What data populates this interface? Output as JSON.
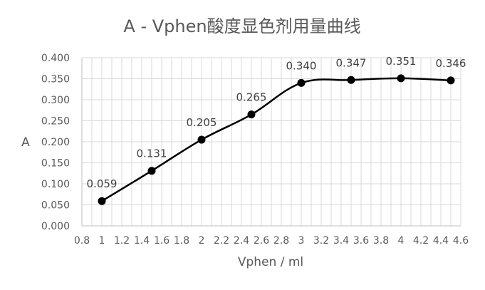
{
  "chart_data": {
    "type": "line",
    "title": "A - Vphen酸度显色剂用量曲线",
    "xlabel": "Vphen / ml",
    "ylabel": "A",
    "xlim": [
      0.8,
      4.6
    ],
    "ylim": [
      0,
      0.4
    ],
    "grid": true,
    "x_ticks": [
      "0.8",
      "1",
      "1.2",
      "1.4",
      "1.6",
      "1.8",
      "2",
      "2.2",
      "2.4",
      "2.6",
      "2.8",
      "3",
      "3.2",
      "3.4",
      "3.6",
      "3.8",
      "4",
      "4.2",
      "4.4",
      "4.6"
    ],
    "y_ticks": [
      "0.000",
      "0.050",
      "0.100",
      "0.150",
      "0.200",
      "0.250",
      "0.300",
      "0.350",
      "0.400"
    ],
    "series": [
      {
        "x": [
          1,
          1.5,
          2,
          2.5,
          3,
          3.5,
          4,
          4.5
        ],
        "values": [
          0.059,
          0.131,
          0.205,
          0.265,
          0.34,
          0.347,
          0.351,
          0.346
        ],
        "labels": [
          "0.059",
          "0.131",
          "0.205",
          "0.265",
          "0.340",
          "0.347",
          "0.351",
          "0.346"
        ],
        "color": "#000000"
      }
    ]
  }
}
